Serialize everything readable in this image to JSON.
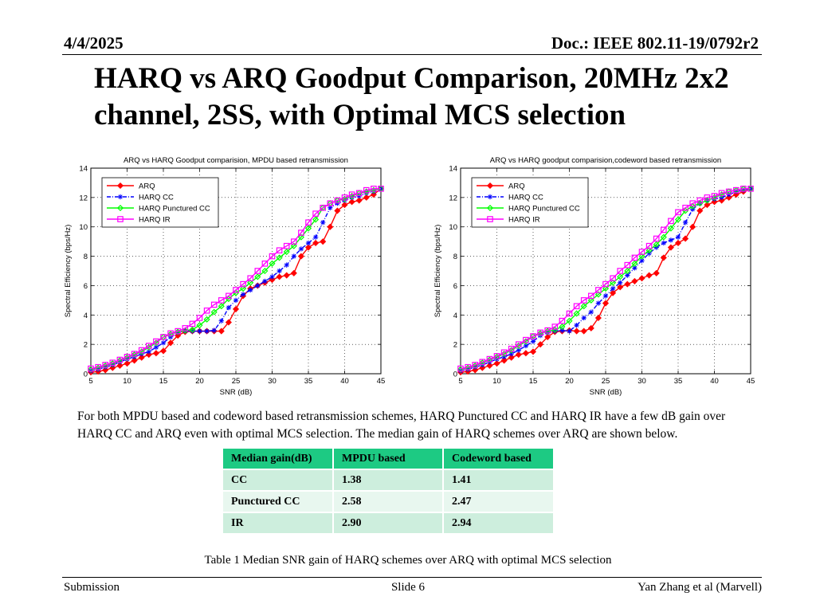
{
  "header": {
    "date": "4/4/2025",
    "doc": "Doc.: IEEE 802.11-19/0792r2"
  },
  "title": "HARQ vs ARQ Goodput Comparison, 20MHz 2x2 channel, 2SS, with Optimal MCS selection",
  "chart_data": [
    {
      "type": "line",
      "title": "ARQ vs HARQ Goodput comparision, MPDU based retransmission",
      "xlabel": "SNR (dB)",
      "ylabel": "Spectral Efficiency (bps/Hz)",
      "xlim": [
        5,
        45
      ],
      "ylim": [
        0,
        14
      ],
      "xticks": [
        5,
        10,
        15,
        20,
        25,
        30,
        35,
        40,
        45
      ],
      "yticks": [
        0,
        2,
        4,
        6,
        8,
        10,
        12,
        14
      ],
      "legend_position": "top-left",
      "x": [
        5,
        6,
        7,
        8,
        9,
        10,
        11,
        12,
        13,
        14,
        15,
        16,
        17,
        18,
        19,
        20,
        21,
        22,
        23,
        24,
        25,
        26,
        27,
        28,
        29,
        30,
        31,
        32,
        33,
        34,
        35,
        36,
        37,
        38,
        39,
        40,
        41,
        42,
        43,
        44,
        45
      ],
      "series": [
        {
          "name": "ARQ",
          "color": "#ff0000",
          "marker": "diamond",
          "values": [
            0.1,
            0.15,
            0.25,
            0.4,
            0.55,
            0.7,
            0.9,
            1.1,
            1.3,
            1.4,
            1.55,
            2.1,
            2.6,
            2.85,
            2.9,
            2.9,
            2.9,
            2.9,
            2.9,
            3.5,
            4.4,
            5.3,
            5.8,
            6.0,
            6.2,
            6.4,
            6.6,
            6.7,
            6.85,
            8.0,
            8.6,
            8.9,
            9.0,
            10.0,
            11.1,
            11.5,
            11.7,
            11.8,
            12.0,
            12.2,
            12.6
          ]
        },
        {
          "name": "HARQ CC",
          "color": "#0000ff",
          "marker": "star",
          "values": [
            0.2,
            0.3,
            0.45,
            0.6,
            0.8,
            1.0,
            1.15,
            1.35,
            1.5,
            1.8,
            2.1,
            2.5,
            2.8,
            2.9,
            2.9,
            2.9,
            2.9,
            2.95,
            3.6,
            4.5,
            5.0,
            5.4,
            5.7,
            6.0,
            6.3,
            6.6,
            7.0,
            7.4,
            8.0,
            8.5,
            8.9,
            9.3,
            10.3,
            11.3,
            11.6,
            11.8,
            12.0,
            12.1,
            12.3,
            12.4,
            12.6
          ]
        },
        {
          "name": "HARQ Punctured CC",
          "color": "#00ff00",
          "marker": "diamond-open",
          "values": [
            0.3,
            0.4,
            0.55,
            0.7,
            0.9,
            1.1,
            1.3,
            1.5,
            1.8,
            2.1,
            2.5,
            2.7,
            2.85,
            2.95,
            3.0,
            3.3,
            3.7,
            4.2,
            4.6,
            5.1,
            5.5,
            5.8,
            6.2,
            6.6,
            7.0,
            7.5,
            7.9,
            8.3,
            8.7,
            9.3,
            9.9,
            10.5,
            11.3,
            11.6,
            11.8,
            11.9,
            12.1,
            12.3,
            12.4,
            12.5,
            12.6
          ]
        },
        {
          "name": "HARQ IR",
          "color": "#ff00ff",
          "marker": "square",
          "values": [
            0.35,
            0.45,
            0.6,
            0.75,
            0.95,
            1.15,
            1.35,
            1.6,
            1.9,
            2.2,
            2.5,
            2.75,
            2.9,
            3.1,
            3.4,
            3.8,
            4.3,
            4.7,
            5.0,
            5.3,
            5.7,
            6.1,
            6.5,
            7.0,
            7.5,
            8.0,
            8.4,
            8.7,
            9.0,
            9.6,
            10.3,
            10.9,
            11.3,
            11.6,
            11.8,
            12.0,
            12.2,
            12.3,
            12.5,
            12.6,
            12.6
          ]
        }
      ]
    },
    {
      "type": "line",
      "title": "ARQ vs HARQ goodput comparision,codeword based retransmission",
      "xlabel": "SNR (dB)",
      "ylabel": "Spectral Efficiency (bps/Hz)",
      "xlim": [
        5,
        45
      ],
      "ylim": [
        0,
        14
      ],
      "xticks": [
        5,
        10,
        15,
        20,
        25,
        30,
        35,
        40,
        45
      ],
      "yticks": [
        0,
        2,
        4,
        6,
        8,
        10,
        12,
        14
      ],
      "legend_position": "top-left",
      "x": [
        5,
        6,
        7,
        8,
        9,
        10,
        11,
        12,
        13,
        14,
        15,
        16,
        17,
        18,
        19,
        20,
        21,
        22,
        23,
        24,
        25,
        26,
        27,
        28,
        29,
        30,
        31,
        32,
        33,
        34,
        35,
        36,
        37,
        38,
        39,
        40,
        41,
        42,
        43,
        44,
        45
      ],
      "series": [
        {
          "name": "ARQ",
          "color": "#ff0000",
          "marker": "diamond",
          "values": [
            0.1,
            0.15,
            0.25,
            0.4,
            0.55,
            0.7,
            0.9,
            1.1,
            1.3,
            1.4,
            1.5,
            2.0,
            2.5,
            2.85,
            2.9,
            2.95,
            2.9,
            2.9,
            3.1,
            3.8,
            4.8,
            5.5,
            5.9,
            6.1,
            6.3,
            6.5,
            6.7,
            6.85,
            7.9,
            8.6,
            8.9,
            9.2,
            10.0,
            11.1,
            11.5,
            11.7,
            11.8,
            12.0,
            12.2,
            12.4,
            12.6
          ]
        },
        {
          "name": "HARQ CC",
          "color": "#0000ff",
          "marker": "star",
          "values": [
            0.2,
            0.3,
            0.45,
            0.6,
            0.8,
            1.0,
            1.15,
            1.35,
            1.6,
            1.9,
            2.2,
            2.6,
            2.8,
            2.9,
            2.95,
            2.9,
            3.3,
            3.8,
            4.2,
            4.8,
            5.3,
            5.8,
            6.2,
            6.7,
            7.2,
            7.7,
            8.2,
            8.6,
            8.9,
            9.1,
            9.3,
            10.3,
            11.2,
            11.6,
            11.8,
            11.9,
            12.0,
            12.2,
            12.4,
            12.5,
            12.6
          ]
        },
        {
          "name": "HARQ Punctured CC",
          "color": "#00ff00",
          "marker": "diamond-open",
          "values": [
            0.3,
            0.4,
            0.55,
            0.75,
            0.95,
            1.15,
            1.35,
            1.6,
            1.9,
            2.2,
            2.55,
            2.75,
            2.9,
            3.0,
            3.2,
            3.6,
            4.1,
            4.6,
            5.0,
            5.4,
            5.8,
            6.2,
            6.6,
            7.0,
            7.5,
            8.0,
            8.4,
            8.8,
            9.3,
            9.9,
            10.5,
            11.1,
            11.4,
            11.6,
            11.8,
            12.0,
            12.2,
            12.4,
            12.5,
            12.6,
            12.6
          ]
        },
        {
          "name": "HARQ IR",
          "color": "#ff00ff",
          "marker": "square",
          "values": [
            0.35,
            0.45,
            0.6,
            0.8,
            1.0,
            1.2,
            1.45,
            1.7,
            2.0,
            2.3,
            2.55,
            2.8,
            2.95,
            3.2,
            3.6,
            4.1,
            4.6,
            5.0,
            5.3,
            5.7,
            6.1,
            6.5,
            7.0,
            7.4,
            7.9,
            8.3,
            8.7,
            9.2,
            9.8,
            10.4,
            11.0,
            11.3,
            11.6,
            11.8,
            12.0,
            12.1,
            12.3,
            12.4,
            12.5,
            12.6,
            12.6
          ]
        }
      ]
    }
  ],
  "body_text": "For both MPDU based and codeword based retransmission schemes, HARQ Punctured CC and HARQ IR have a few dB gain over HARQ CC and ARQ even with optimal MCS selection.  The median gain of HARQ schemes over ARQ are shown below.",
  "table": {
    "headers": [
      "Median gain(dB)",
      "MPDU based",
      "Codeword based"
    ],
    "rows": [
      [
        "CC",
        "1.38",
        "1.41"
      ],
      [
        "Punctured CC",
        "2.58",
        "2.47"
      ],
      [
        "IR",
        "2.90",
        "2.94"
      ]
    ]
  },
  "caption": "Table 1 Median SNR gain of HARQ schemes over ARQ with optimal MCS selection",
  "footer": {
    "left": "Submission",
    "center": "Slide 6",
    "right": "Yan Zhang et al (Marvell)"
  }
}
